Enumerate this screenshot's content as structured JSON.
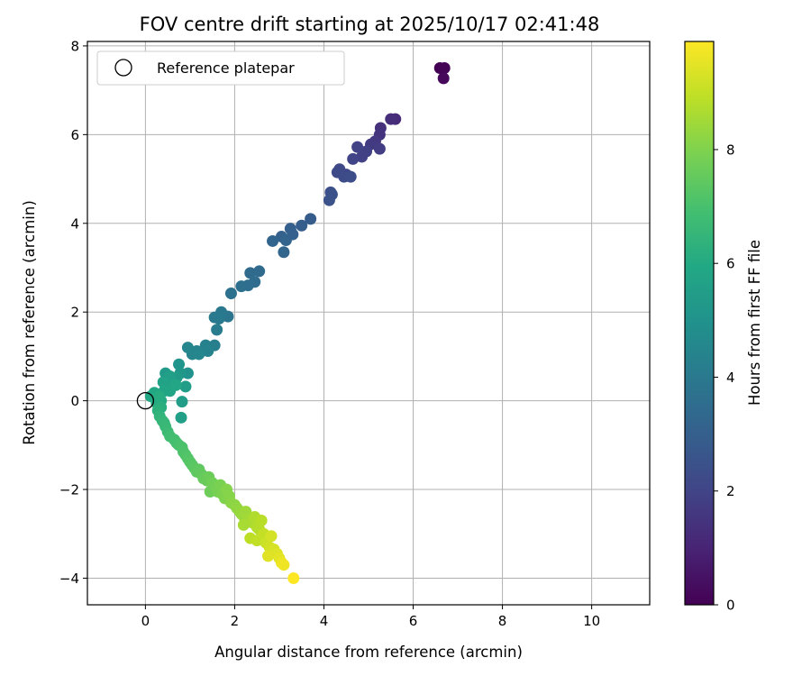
{
  "chart_data": {
    "type": "scatter",
    "title": "FOV centre drift starting at 2025/10/17 02:41:48",
    "xlabel": "Angular distance from reference (arcmin)",
    "ylabel": "Rotation from reference (arcmin)",
    "xlim": [
      -1.3,
      11.3
    ],
    "ylim": [
      -4.6,
      8.1
    ],
    "xticks": [
      0,
      2,
      4,
      6,
      8,
      10
    ],
    "yticks": [
      -4,
      -2,
      0,
      2,
      4,
      6,
      8
    ],
    "grid": true,
    "legend": {
      "position": "top-left",
      "entries": [
        "Reference platepar"
      ]
    },
    "reference_point": {
      "name": "Reference platepar",
      "x": 0,
      "y": 0,
      "marker": "open-circle"
    },
    "colorbar": {
      "label": "Hours from first FF file",
      "colormap": "viridis",
      "range": [
        0,
        9.9
      ],
      "ticks": [
        0,
        2,
        4,
        6,
        8
      ]
    },
    "points": [
      {
        "x": 6.6,
        "y": 7.5,
        "h": 0.0
      },
      {
        "x": 6.7,
        "y": 7.5,
        "h": 0.1
      },
      {
        "x": 6.68,
        "y": 7.27,
        "h": 0.2
      },
      {
        "x": 5.6,
        "y": 6.35,
        "h": 1.2
      },
      {
        "x": 5.5,
        "y": 6.35,
        "h": 1.3
      },
      {
        "x": 5.27,
        "y": 6.15,
        "h": 1.4
      },
      {
        "x": 5.25,
        "y": 6.0,
        "h": 1.5
      },
      {
        "x": 5.15,
        "y": 5.85,
        "h": 1.6
      },
      {
        "x": 5.05,
        "y": 5.78,
        "h": 1.7
      },
      {
        "x": 5.25,
        "y": 5.68,
        "h": 1.75
      },
      {
        "x": 4.95,
        "y": 5.62,
        "h": 1.85
      },
      {
        "x": 4.85,
        "y": 5.5,
        "h": 1.9
      },
      {
        "x": 4.75,
        "y": 5.72,
        "h": 1.95
      },
      {
        "x": 4.65,
        "y": 5.45,
        "h": 2.0
      },
      {
        "x": 4.5,
        "y": 5.1,
        "h": 2.1
      },
      {
        "x": 4.35,
        "y": 5.22,
        "h": 2.15
      },
      {
        "x": 4.3,
        "y": 5.15,
        "h": 2.2
      },
      {
        "x": 4.45,
        "y": 5.05,
        "h": 2.25
      },
      {
        "x": 4.6,
        "y": 5.05,
        "h": 2.3
      },
      {
        "x": 4.15,
        "y": 4.7,
        "h": 2.4
      },
      {
        "x": 4.18,
        "y": 4.65,
        "h": 2.45
      },
      {
        "x": 4.12,
        "y": 4.52,
        "h": 2.5
      },
      {
        "x": 3.7,
        "y": 4.1,
        "h": 2.85
      },
      {
        "x": 3.5,
        "y": 3.95,
        "h": 2.95
      },
      {
        "x": 3.25,
        "y": 3.88,
        "h": 3.0
      },
      {
        "x": 3.3,
        "y": 3.75,
        "h": 3.05
      },
      {
        "x": 3.05,
        "y": 3.7,
        "h": 3.1
      },
      {
        "x": 3.15,
        "y": 3.62,
        "h": 3.15
      },
      {
        "x": 2.85,
        "y": 3.6,
        "h": 3.2
      },
      {
        "x": 3.1,
        "y": 3.35,
        "h": 3.25
      },
      {
        "x": 2.55,
        "y": 2.92,
        "h": 3.4
      },
      {
        "x": 2.35,
        "y": 2.88,
        "h": 3.45
      },
      {
        "x": 2.45,
        "y": 2.68,
        "h": 3.5
      },
      {
        "x": 2.3,
        "y": 2.6,
        "h": 3.55
      },
      {
        "x": 2.15,
        "y": 2.58,
        "h": 3.6
      },
      {
        "x": 1.92,
        "y": 2.42,
        "h": 3.7
      },
      {
        "x": 1.85,
        "y": 1.9,
        "h": 3.9
      },
      {
        "x": 1.7,
        "y": 2.0,
        "h": 3.95
      },
      {
        "x": 1.55,
        "y": 1.88,
        "h": 4.0
      },
      {
        "x": 1.65,
        "y": 1.85,
        "h": 4.05
      },
      {
        "x": 1.6,
        "y": 1.6,
        "h": 4.1
      },
      {
        "x": 1.55,
        "y": 1.25,
        "h": 4.25
      },
      {
        "x": 1.35,
        "y": 1.25,
        "h": 4.3
      },
      {
        "x": 1.4,
        "y": 1.12,
        "h": 4.35
      },
      {
        "x": 1.15,
        "y": 1.12,
        "h": 4.4
      },
      {
        "x": 1.05,
        "y": 1.05,
        "h": 4.45
      },
      {
        "x": 0.95,
        "y": 1.2,
        "h": 4.5
      },
      {
        "x": 1.2,
        "y": 1.05,
        "h": 4.55
      },
      {
        "x": 0.95,
        "y": 0.62,
        "h": 5.0
      },
      {
        "x": 0.75,
        "y": 0.82,
        "h": 5.1
      },
      {
        "x": 0.78,
        "y": 0.62,
        "h": 5.2
      },
      {
        "x": 0.6,
        "y": 0.5,
        "h": 5.3
      },
      {
        "x": 0.45,
        "y": 0.62,
        "h": 5.35
      },
      {
        "x": 0.7,
        "y": 0.52,
        "h": 5.4
      },
      {
        "x": 0.9,
        "y": 0.32,
        "h": 5.45
      },
      {
        "x": 0.82,
        "y": -0.02,
        "h": 5.5
      },
      {
        "x": 0.8,
        "y": -0.38,
        "h": 5.55
      },
      {
        "x": 0.55,
        "y": 0.55,
        "h": 5.6
      },
      {
        "x": 0.6,
        "y": 0.35,
        "h": 5.65
      },
      {
        "x": 0.4,
        "y": 0.42,
        "h": 5.7
      },
      {
        "x": 0.42,
        "y": 0.22,
        "h": 5.75
      },
      {
        "x": 0.55,
        "y": 0.22,
        "h": 5.8
      },
      {
        "x": 0.68,
        "y": 0.35,
        "h": 5.85
      },
      {
        "x": 0.2,
        "y": 0.18,
        "h": 5.9
      },
      {
        "x": 0.12,
        "y": 0.1,
        "h": 5.95
      },
      {
        "x": 0.35,
        "y": 0.0,
        "h": 6.0
      },
      {
        "x": 0.25,
        "y": -0.05,
        "h": 6.05
      },
      {
        "x": 0.3,
        "y": 0.1,
        "h": 6.1
      },
      {
        "x": 0.35,
        "y": -0.15,
        "h": 6.2
      },
      {
        "x": 0.28,
        "y": -0.22,
        "h": 6.3
      },
      {
        "x": 0.32,
        "y": -0.35,
        "h": 6.4
      },
      {
        "x": 0.38,
        "y": -0.45,
        "h": 6.5
      },
      {
        "x": 0.42,
        "y": -0.5,
        "h": 6.55
      },
      {
        "x": 0.45,
        "y": -0.58,
        "h": 6.6
      },
      {
        "x": 0.5,
        "y": -0.7,
        "h": 6.7
      },
      {
        "x": 0.55,
        "y": -0.8,
        "h": 6.8
      },
      {
        "x": 0.65,
        "y": -0.88,
        "h": 6.9
      },
      {
        "x": 0.7,
        "y": -0.95,
        "h": 6.95
      },
      {
        "x": 0.75,
        "y": -1.0,
        "h": 7.0
      },
      {
        "x": 0.82,
        "y": -1.05,
        "h": 7.05
      },
      {
        "x": 0.85,
        "y": -1.15,
        "h": 7.1
      },
      {
        "x": 0.9,
        "y": -1.22,
        "h": 7.15
      },
      {
        "x": 0.95,
        "y": -1.3,
        "h": 7.2
      },
      {
        "x": 1.0,
        "y": -1.38,
        "h": 7.25
      },
      {
        "x": 1.05,
        "y": -1.45,
        "h": 7.3
      },
      {
        "x": 1.1,
        "y": -1.52,
        "h": 7.35
      },
      {
        "x": 1.15,
        "y": -1.6,
        "h": 7.4
      },
      {
        "x": 1.2,
        "y": -1.55,
        "h": 7.45
      },
      {
        "x": 1.25,
        "y": -1.65,
        "h": 7.5
      },
      {
        "x": 1.3,
        "y": -1.75,
        "h": 7.55
      },
      {
        "x": 1.38,
        "y": -1.8,
        "h": 7.6
      },
      {
        "x": 1.42,
        "y": -1.72,
        "h": 7.65
      },
      {
        "x": 1.45,
        "y": -2.05,
        "h": 7.7
      },
      {
        "x": 1.5,
        "y": -1.85,
        "h": 7.75
      },
      {
        "x": 1.58,
        "y": -1.95,
        "h": 7.8
      },
      {
        "x": 1.62,
        "y": -2.05,
        "h": 7.85
      },
      {
        "x": 1.68,
        "y": -1.9,
        "h": 7.9
      },
      {
        "x": 1.72,
        "y": -2.1,
        "h": 7.95
      },
      {
        "x": 1.78,
        "y": -2.2,
        "h": 8.0
      },
      {
        "x": 1.82,
        "y": -2.0,
        "h": 8.05
      },
      {
        "x": 1.88,
        "y": -2.15,
        "h": 8.1
      },
      {
        "x": 1.92,
        "y": -2.3,
        "h": 8.15
      },
      {
        "x": 2.0,
        "y": -2.35,
        "h": 8.2
      },
      {
        "x": 2.05,
        "y": -2.42,
        "h": 8.25
      },
      {
        "x": 2.1,
        "y": -2.48,
        "h": 8.3
      },
      {
        "x": 2.15,
        "y": -2.55,
        "h": 8.35
      },
      {
        "x": 2.2,
        "y": -2.6,
        "h": 8.4
      },
      {
        "x": 2.25,
        "y": -2.5,
        "h": 8.45
      },
      {
        "x": 2.3,
        "y": -2.65,
        "h": 8.5
      },
      {
        "x": 2.35,
        "y": -2.7,
        "h": 8.55
      },
      {
        "x": 2.2,
        "y": -2.8,
        "h": 8.6
      },
      {
        "x": 2.4,
        "y": -2.75,
        "h": 8.65
      },
      {
        "x": 2.45,
        "y": -2.62,
        "h": 8.7
      },
      {
        "x": 2.5,
        "y": -2.85,
        "h": 8.75
      },
      {
        "x": 2.55,
        "y": -2.9,
        "h": 8.8
      },
      {
        "x": 2.6,
        "y": -2.7,
        "h": 8.85
      },
      {
        "x": 2.35,
        "y": -3.1,
        "h": 8.9
      },
      {
        "x": 2.5,
        "y": -3.15,
        "h": 8.95
      },
      {
        "x": 2.65,
        "y": -3.0,
        "h": 9.0
      },
      {
        "x": 2.7,
        "y": -3.2,
        "h": 9.1
      },
      {
        "x": 2.78,
        "y": -3.3,
        "h": 9.2
      },
      {
        "x": 2.82,
        "y": -3.05,
        "h": 9.25
      },
      {
        "x": 2.88,
        "y": -3.35,
        "h": 9.3
      },
      {
        "x": 2.95,
        "y": -3.45,
        "h": 9.4
      },
      {
        "x": 2.75,
        "y": -3.5,
        "h": 9.45
      },
      {
        "x": 3.0,
        "y": -3.55,
        "h": 9.5
      },
      {
        "x": 3.05,
        "y": -3.65,
        "h": 9.6
      },
      {
        "x": 3.1,
        "y": -3.7,
        "h": 9.7
      },
      {
        "x": 3.32,
        "y": -4.0,
        "h": 9.9
      }
    ]
  }
}
